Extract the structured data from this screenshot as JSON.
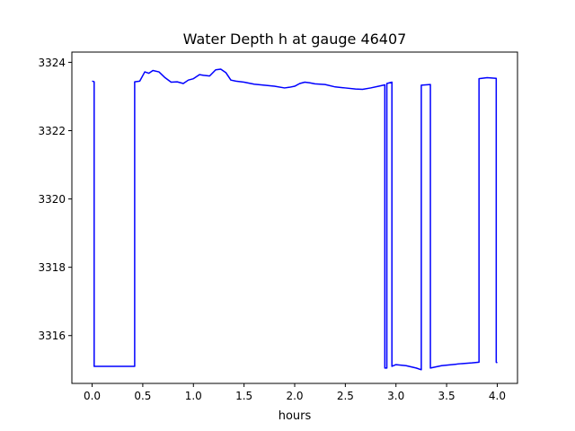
{
  "chart_data": {
    "type": "line",
    "title": "Water Depth h at gauge 46407",
    "xlabel": "hours",
    "ylabel": "",
    "xlim": [
      -0.2,
      4.2
    ],
    "ylim": [
      3314.6,
      3324.3
    ],
    "xticks": [
      0.0,
      0.5,
      1.0,
      1.5,
      2.0,
      2.5,
      3.0,
      3.5,
      4.0
    ],
    "xtick_labels": [
      "0.0",
      "0.5",
      "1.0",
      "1.5",
      "2.0",
      "2.5",
      "3.0",
      "3.5",
      "4.0"
    ],
    "yticks": [
      3316,
      3318,
      3320,
      3322,
      3324
    ],
    "ytick_labels": [
      "3316",
      "3318",
      "3320",
      "3322",
      "3324"
    ],
    "grid": false,
    "series": [
      {
        "color": "#0000ff",
        "x": [
          0.0,
          0.02,
          0.02,
          0.2,
          0.42,
          0.42,
          0.47,
          0.52,
          0.56,
          0.6,
          0.66,
          0.72,
          0.78,
          0.84,
          0.9,
          0.95,
          1.0,
          1.06,
          1.1,
          1.16,
          1.22,
          1.27,
          1.32,
          1.37,
          1.42,
          1.5,
          1.6,
          1.7,
          1.8,
          1.9,
          1.95,
          2.0,
          2.05,
          2.1,
          2.15,
          2.2,
          2.3,
          2.4,
          2.5,
          2.6,
          2.67,
          2.75,
          2.83,
          2.89,
          2.89,
          2.91,
          2.91,
          2.96,
          2.96,
          3.0,
          3.1,
          3.2,
          3.25,
          3.25,
          3.34,
          3.34,
          3.45,
          3.55,
          3.65,
          3.75,
          3.82,
          3.82,
          3.9,
          3.99,
          3.99,
          4.0
        ],
        "y": [
          3323.45,
          3323.43,
          3315.1,
          3315.1,
          3315.1,
          3323.43,
          3323.45,
          3323.72,
          3323.68,
          3323.76,
          3323.72,
          3323.55,
          3323.42,
          3323.43,
          3323.38,
          3323.48,
          3323.52,
          3323.64,
          3323.62,
          3323.6,
          3323.78,
          3323.8,
          3323.7,
          3323.48,
          3323.45,
          3323.42,
          3323.36,
          3323.33,
          3323.3,
          3323.25,
          3323.27,
          3323.3,
          3323.38,
          3323.42,
          3323.4,
          3323.37,
          3323.35,
          3323.28,
          3323.25,
          3323.22,
          3323.21,
          3323.25,
          3323.3,
          3323.34,
          3315.05,
          3315.05,
          3323.38,
          3323.42,
          3315.1,
          3315.15,
          3315.12,
          3315.05,
          3315.0,
          3323.33,
          3323.35,
          3315.05,
          3315.12,
          3315.15,
          3315.18,
          3315.2,
          3315.22,
          3323.52,
          3323.55,
          3323.53,
          3315.22,
          3315.2
        ]
      }
    ]
  }
}
